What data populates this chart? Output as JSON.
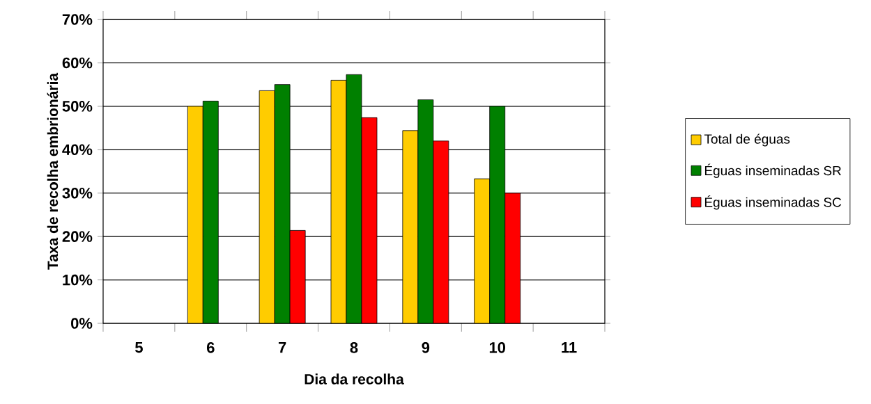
{
  "chart_data": {
    "type": "bar",
    "xlabel": "Dia da recolha",
    "ylabel": "Taxa de recolha embrionária",
    "categories": [
      "5",
      "6",
      "7",
      "8",
      "9",
      "10",
      "11"
    ],
    "series": [
      {
        "name": "Total de éguas",
        "color": "#ffcc00",
        "values": [
          null,
          50,
          53.6,
          56,
          44.4,
          33.3,
          null
        ]
      },
      {
        "name": "Éguas inseminadas SR",
        "color": "#008000",
        "values": [
          null,
          51.2,
          55,
          57.3,
          51.5,
          50,
          null
        ]
      },
      {
        "name": "Éguas inseminadas SC",
        "color": "#ff0000",
        "values": [
          null,
          null,
          21.4,
          47.4,
          42,
          30,
          null
        ]
      }
    ],
    "ylim": [
      0,
      70
    ],
    "yticks": [
      {
        "value": 0,
        "label": "0%"
      },
      {
        "value": 10,
        "label": "10%"
      },
      {
        "value": 20,
        "label": "20%"
      },
      {
        "value": 30,
        "label": "30%"
      },
      {
        "value": 40,
        "label": "40%"
      },
      {
        "value": 50,
        "label": "50%"
      },
      {
        "value": 60,
        "label": "60%"
      },
      {
        "value": 70,
        "label": "70%"
      }
    ],
    "grid": "y",
    "legend": "right"
  }
}
